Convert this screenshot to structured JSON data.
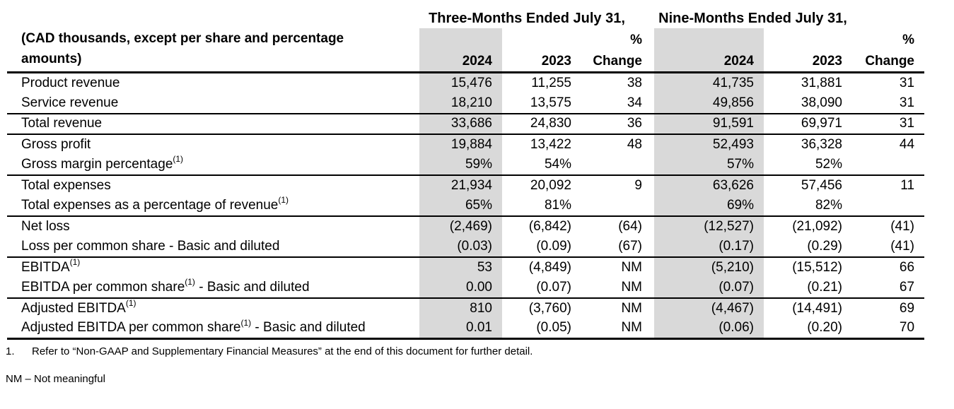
{
  "header": {
    "group1_title": "Three-Months Ended July 31,",
    "group2_title": "Nine-Months Ended July 31,",
    "unit_note_line1": "(CAD thousands, except per share and percentage",
    "unit_note_line2": "amounts)",
    "pct_symbol": "%",
    "col_2024": "2024",
    "col_2023": "2023",
    "col_change": "Change"
  },
  "table": {
    "rows": [
      {
        "label": "Product revenue",
        "sup": "",
        "suffix": "",
        "values": [
          "15,476",
          "11,255",
          "38",
          "41,735",
          "31,881",
          "31"
        ],
        "rule_after": false
      },
      {
        "label": "Service revenue",
        "sup": "",
        "suffix": "",
        "values": [
          "18,210",
          "13,575",
          "34",
          "49,856",
          "38,090",
          "31"
        ],
        "rule_after": true
      },
      {
        "label": "Total revenue",
        "sup": "",
        "suffix": "",
        "values": [
          "33,686",
          "24,830",
          "36",
          "91,591",
          "69,971",
          "31"
        ],
        "rule_after": true
      },
      {
        "label": "Gross profit",
        "sup": "",
        "suffix": "",
        "values": [
          "19,884",
          "13,422",
          "48",
          "52,493",
          "36,328",
          "44"
        ],
        "rule_after": false
      },
      {
        "label": "Gross margin percentage",
        "sup": "(1)",
        "suffix": "",
        "values": [
          "59%",
          "54%",
          "",
          "57%",
          "52%",
          ""
        ],
        "rule_after": true
      },
      {
        "label": "Total expenses",
        "sup": "",
        "suffix": "",
        "values": [
          "21,934",
          "20,092",
          "9",
          "63,626",
          "57,456",
          "11"
        ],
        "rule_after": false
      },
      {
        "label": "Total expenses as a percentage of revenue",
        "sup": "(1)",
        "suffix": "",
        "values": [
          "65%",
          "81%",
          "",
          "69%",
          "82%",
          ""
        ],
        "rule_after": true
      },
      {
        "label": "Net loss",
        "sup": "",
        "suffix": "",
        "values": [
          "(2,469)",
          "(6,842)",
          "(64)",
          "(12,527)",
          "(21,092)",
          "(41)"
        ],
        "rule_after": false
      },
      {
        "label": "Loss per common share - Basic and diluted",
        "sup": "",
        "suffix": "",
        "values": [
          "(0.03)",
          "(0.09)",
          "(67)",
          "(0.17)",
          "(0.29)",
          "(41)"
        ],
        "rule_after": true
      },
      {
        "label": "EBITDA",
        "sup": "(1)",
        "suffix": "",
        "values": [
          "53",
          "(4,849)",
          "NM",
          "(5,210)",
          "(15,512)",
          "66"
        ],
        "rule_after": false
      },
      {
        "label": "EBITDA per common share",
        "sup": "(1)",
        "suffix": " - Basic and diluted",
        "values": [
          "0.00",
          "(0.07)",
          "NM",
          "(0.07)",
          "(0.21)",
          "67"
        ],
        "rule_after": true
      },
      {
        "label": "Adjusted EBITDA",
        "sup": "(1)",
        "suffix": "",
        "values": [
          "810",
          "(3,760)",
          "NM",
          "(4,467)",
          "(14,491)",
          "69"
        ],
        "rule_after": false
      },
      {
        "label": "Adjusted EBITDA per common share",
        "sup": "(1)",
        "suffix": " - Basic and diluted",
        "values": [
          "0.01",
          "(0.05)",
          "NM",
          "(0.06)",
          "(0.20)",
          "70"
        ],
        "rule_after": false,
        "last": true
      }
    ]
  },
  "footnotes": {
    "note1_marker": "1.",
    "note1_text": "Refer to “Non-GAAP and Supplementary Financial Measures” at the end of this document for further detail.",
    "nm_note": "NM – Not meaningful"
  },
  "colors": {
    "shade_2024_columns": "#d9d9d9",
    "rules": "#000000",
    "text": "#000000"
  }
}
